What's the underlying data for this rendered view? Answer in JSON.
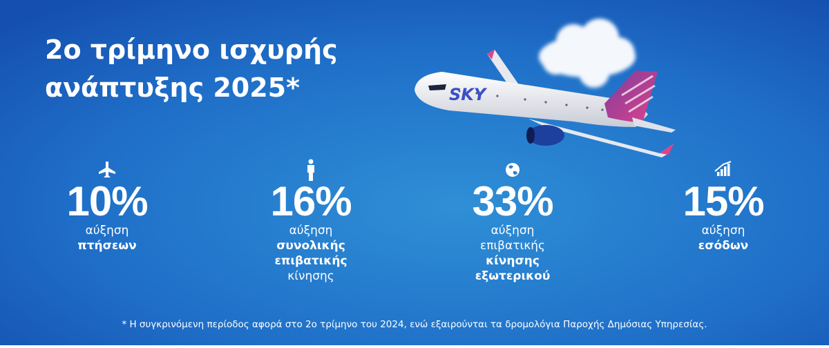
{
  "title": {
    "lines": [
      "2ο τρίμηνο ισχυρής",
      "ανάπτυξης 2025*"
    ]
  },
  "aircraft_livery": "SKY",
  "stats": [
    {
      "icon": "plane",
      "value": "10%",
      "lines": [
        {
          "text": "αύξηση",
          "bold": false
        },
        {
          "text": "πτήσεων",
          "bold": true
        }
      ]
    },
    {
      "icon": "person",
      "value": "16%",
      "lines": [
        {
          "text": "αύξηση",
          "bold": false
        },
        {
          "text": "συνολικής",
          "bold": true
        },
        {
          "text": "επιβατικής",
          "bold": true
        },
        {
          "text": "κίνησης",
          "bold": false
        }
      ]
    },
    {
      "icon": "globe",
      "value": "33%",
      "lines": [
        {
          "text": "αύξηση",
          "bold": false
        },
        {
          "text": "επιβατικής",
          "bold": false
        },
        {
          "text": "κίνησης",
          "bold": true
        },
        {
          "text": "εξωτερικού",
          "bold": true
        }
      ]
    },
    {
      "icon": "growth",
      "value": "15%",
      "lines": [
        {
          "text": "αύξηση",
          "bold": false
        },
        {
          "text": "εσόδων",
          "bold": true
        }
      ]
    }
  ],
  "footnote": "* Η συγκρινόμενη περίοδος αφορά στο 2ο τρίμηνο του 2024, ενώ εξαιρούνται τα δρομολόγια Παροχής Δημόσιας Υπηρεσίας."
}
